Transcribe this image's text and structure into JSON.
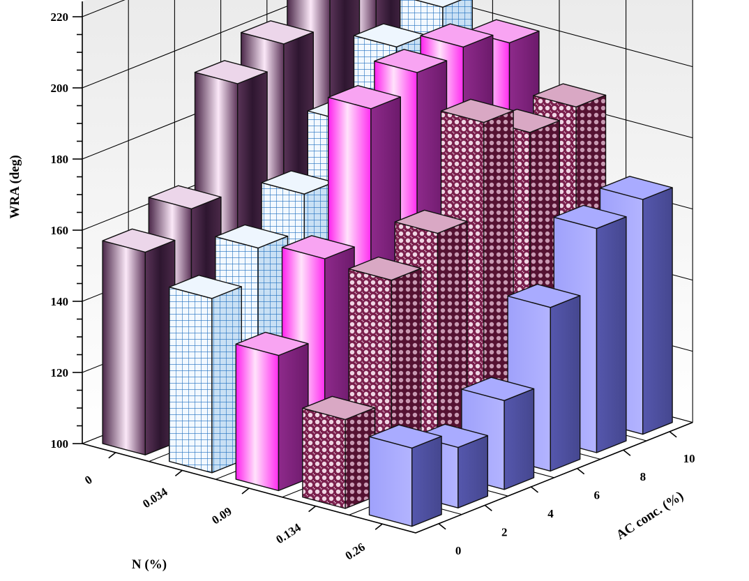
{
  "chart_data": {
    "type": "bar",
    "variant": "3d",
    "title": "",
    "zlabel": "WRA (deg)",
    "xlabel": "AC conc. (%)",
    "ylabel": "N (%)",
    "zlim": [
      100,
      220
    ],
    "zticks": [
      100,
      120,
      140,
      160,
      180,
      200,
      220
    ],
    "grid": true,
    "categories": [
      "0",
      "2",
      "4",
      "6",
      "8",
      "10"
    ],
    "series": [
      {
        "name": "0.26",
        "values": [
          157,
          164,
          194,
          200,
          210,
          223
        ]
      },
      {
        "name": "0.134",
        "values": [
          149,
          158,
          168,
          183,
          199,
          205
        ]
      },
      {
        "name": "0.09",
        "values": [
          138,
          160,
          197,
          202,
          204,
          200
        ]
      },
      {
        "name": "0.034",
        "values": [
          125,
          159,
          167,
          193,
          185,
          187
        ]
      },
      {
        "name": "0",
        "values": [
          122,
          117,
          125,
          146,
          163,
          166
        ]
      }
    ],
    "colors": {
      "0.26": {
        "light": "#fde6fb",
        "mid": "#8e5a8c",
        "dark": "#3b1f3c",
        "top": "#ecd6ea",
        "side": "#2e1630"
      },
      "0.134": {
        "light": "#e6f2fd",
        "mid": "#bcd9f1",
        "dark": "#6e97bf",
        "top": "#eef6fe",
        "side": "#8fb4d6",
        "grid": "#1f6fbf"
      },
      "0.09": {
        "light": "#ffe8ff",
        "mid": "#ff22f0",
        "dark": "#b014a8",
        "top": "#f8a4f2",
        "side": "#7a1a79"
      },
      "0.034": {
        "light": "#c8a0b6",
        "mid": "#9e3d67",
        "dark": "#6e1f45",
        "top": "#d9a8c4",
        "side": "#5a1738"
      },
      "0": {
        "light": "#b8b9ff",
        "mid": "#9fa0f5",
        "dark": "#7b7cd6",
        "top": "#a9abff",
        "side": "#4f50a3"
      }
    }
  }
}
